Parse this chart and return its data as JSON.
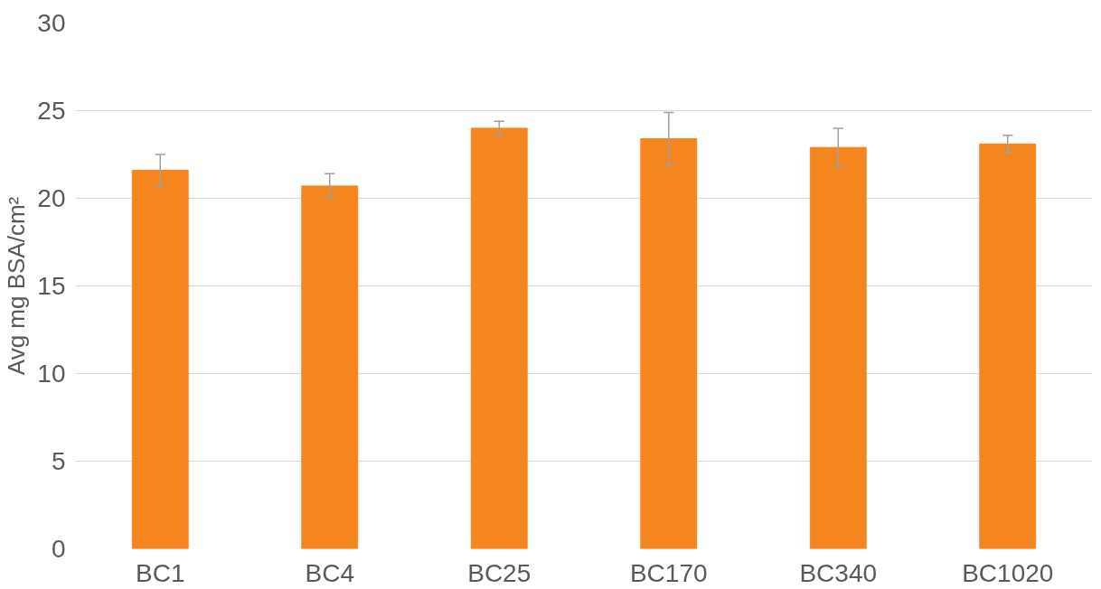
{
  "chart_data": {
    "type": "bar",
    "ylabel": "Avg mg BSA/cm²",
    "categories": [
      "BC1",
      "BC4",
      "BC25",
      "BC170",
      "BC340",
      "BC1020"
    ],
    "values": [
      21.6,
      20.7,
      24.0,
      23.4,
      22.9,
      23.1
    ],
    "errors": [
      0.9,
      0.7,
      0.4,
      1.5,
      1.1,
      0.5
    ],
    "color": "#f5851f",
    "ylim": [
      0,
      30
    ],
    "yticks": [
      0,
      5,
      10,
      15,
      20,
      25,
      30
    ],
    "grid": "y"
  }
}
